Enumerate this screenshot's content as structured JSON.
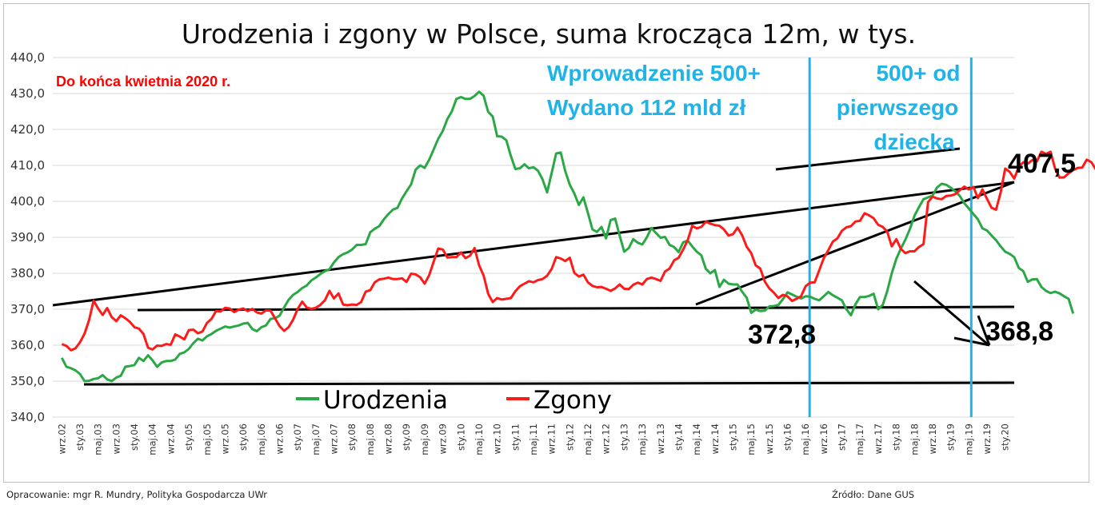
{
  "chart_data": {
    "type": "line",
    "title": "Urodzenia i zgony w Polsce, suma krocząca 12m, w tys.",
    "ylim": [
      340,
      440
    ],
    "yticks": [
      "340,0",
      "350,0",
      "360,0",
      "370,0",
      "380,0",
      "390,0",
      "400,0",
      "410,0",
      "420,0",
      "430,0",
      "440,0"
    ],
    "grid": true,
    "x_tick_labels": [
      "wrz.02",
      "sty.03",
      "maj.03",
      "wrz.03",
      "sty.04",
      "maj.04",
      "wrz.04",
      "sty.05",
      "maj.05",
      "wrz.05",
      "sty.06",
      "maj.06",
      "wrz.06",
      "sty.07",
      "maj.07",
      "wrz.07",
      "sty.08",
      "maj.08",
      "wrz.08",
      "sty.09",
      "maj.09",
      "wrz.09",
      "sty.10",
      "maj.10",
      "wrz.10",
      "sty.11",
      "maj.11",
      "wrz.11",
      "sty.12",
      "maj.12",
      "wrz.12",
      "sty.13",
      "maj.13",
      "wrz.13",
      "sty.14",
      "maj.14",
      "wrz.14",
      "sty.15",
      "maj.15",
      "wrz.15",
      "sty.16",
      "maj.16",
      "wrz.16",
      "sty.17",
      "maj.17",
      "wrz.17",
      "sty.18",
      "maj.18",
      "wrz.18",
      "sty.19",
      "maj.19",
      "wrz.19",
      "sty.20"
    ],
    "series": [
      {
        "name": "Urodzenia",
        "color": "#2aa845",
        "values": [
          356.5,
          354,
          353.6,
          353,
          352,
          350,
          350.1,
          350.6,
          350.8,
          351.7,
          350.5,
          350,
          351,
          351.5,
          354,
          354.2,
          354.5,
          356.5,
          355.6,
          357.2,
          355.8,
          354,
          355.2,
          355.6,
          355.6,
          356,
          357.6,
          358,
          359,
          360.6,
          361.8,
          361.3,
          362.5,
          363.1,
          364,
          364.6,
          365.2,
          364.9,
          365.2,
          365.5,
          366,
          366.2,
          364.5,
          363.9,
          365,
          365.5,
          367.3,
          367.5,
          368.2,
          370.5,
          372.6,
          374,
          374.8,
          375.9,
          376.6,
          378,
          378.8,
          379.8,
          380.6,
          381.1,
          383,
          384.5,
          385.3,
          385.8,
          386.6,
          387.9,
          387.9,
          388.1,
          391.4,
          392.4,
          393.1,
          395,
          396.5,
          397.7,
          398.2,
          400.8,
          402.8,
          404.7,
          408.8,
          410,
          409.3,
          411.6,
          414.5,
          417.4,
          419.6,
          422.9,
          425,
          428.5,
          429,
          428.5,
          428.5,
          429.3,
          430.5,
          429.4,
          424.9,
          423.6,
          418.1,
          418,
          417,
          412.6,
          409,
          409.2,
          410.3,
          409.2,
          409.5,
          408.5,
          406.1,
          402.5,
          407.9,
          413.3,
          413.6,
          408.4,
          404.6,
          402.2,
          399,
          401.1,
          396.8,
          392.2,
          391.5,
          392.9,
          389.7,
          394.8,
          395.2,
          390.5,
          386,
          387,
          389.5,
          388.5,
          388,
          390,
          392.6,
          391.2,
          389.9,
          390.1,
          387.9,
          387.3,
          385.9,
          388.6,
          389.1,
          387.5,
          386,
          385,
          381.2,
          380,
          380.9,
          376.2,
          378.2,
          377.1,
          376.9,
          376.9,
          374.9,
          373.2,
          369,
          369.9,
          369.5,
          369.6,
          370.8,
          370.9,
          371.2,
          372.8,
          374.7,
          374.1,
          373.5,
          373,
          373.6,
          373.5,
          372.9,
          372.5,
          373.6,
          374.8,
          373.9,
          373.2,
          372.5,
          370,
          368.3,
          371.4,
          373.4,
          373.4,
          373.7,
          374.3,
          370,
          371.2,
          375,
          380,
          384,
          386.9,
          389.3,
          392.3,
          396,
          398.4,
          400.6,
          401.1,
          401.6,
          403.9,
          404.9,
          404.6,
          403.8,
          402.8,
          401.5,
          399.5,
          398,
          396.5,
          395,
          392.5,
          391.9,
          390.5,
          389.2,
          387.5,
          386,
          385.4,
          384.5,
          381.5,
          380.6,
          377.6,
          378.3,
          378.4,
          376.2,
          375.1,
          374.5,
          374.9,
          374.4,
          373.6,
          372.9,
          368.8
        ]
      },
      {
        "name": "Zgony",
        "color": "#ff1a1a",
        "values": [
          360.3,
          359.8,
          358.6,
          359.1,
          360.8,
          363.2,
          367,
          372.4,
          370.2,
          368.4,
          370.3,
          367.8,
          366.7,
          368.3,
          367.5,
          366.5,
          365,
          364.6,
          363.1,
          359.3,
          358.8,
          359.9,
          359.8,
          360.3,
          360.1,
          363,
          362.4,
          361.6,
          364.2,
          364.3,
          363.3,
          363.8,
          366.2,
          367.3,
          369.5,
          369.4,
          370.4,
          370.2,
          369.2,
          369.9,
          370.2,
          369.5,
          370.1,
          369.1,
          368.8,
          369.7,
          369.6,
          367.5,
          365.3,
          364,
          365,
          367.1,
          370.1,
          372.1,
          370.5,
          370.1,
          370.4,
          371.2,
          372.5,
          375.1,
          373,
          374.4,
          371.3,
          371.1,
          371.3,
          371.2,
          372,
          374.9,
          375.3,
          377.5,
          378.3,
          378.5,
          378.8,
          378.4,
          378.4,
          378.6,
          377.6,
          379.9,
          379.7,
          378.9,
          377.1,
          379.5,
          383.3,
          386.9,
          386.6,
          384.4,
          384.5,
          384.5,
          385.8,
          384.2,
          384.9,
          387,
          382.2,
          379.4,
          374.3,
          372,
          373.1,
          372.7,
          372.9,
          373.1,
          375,
          376.4,
          377.1,
          377.8,
          377.5,
          378.1,
          378.4,
          379.3,
          381.2,
          384.5,
          384.1,
          383.4,
          384.3,
          380.1,
          379.1,
          379.6,
          377.5,
          376.5,
          376.1,
          376.2,
          375.7,
          375.1,
          375.8,
          376.9,
          375.7,
          375.6,
          376.8,
          377.4,
          376.9,
          378.4,
          378.8,
          378.4,
          377.9,
          380.5,
          381.3,
          383.6,
          384.3,
          386.6,
          389.2,
          393.2,
          392.5,
          392.9,
          394.3,
          393.8,
          393.4,
          393.2,
          392.2,
          390.5,
          390.9,
          392.7,
          390.6,
          387.4,
          385.6,
          382.2,
          381.3,
          377.7,
          375.8,
          374.6,
          373.1,
          374,
          373.6,
          372.3,
          372.9,
          373.6,
          376.4,
          377.4,
          377.5,
          380.8,
          384.2,
          386.4,
          388.8,
          389.7,
          391.8,
          392.8,
          393.1,
          394.4,
          394.6,
          396.7,
          396.1,
          395.3,
          393.5,
          392.9,
          391.6,
          387.5,
          389.5,
          386.8,
          385.6,
          386.1,
          386.1,
          387.3,
          388.1,
          399.8,
          401.3,
          400.8,
          400.6,
          401.5,
          401.6,
          402,
          403.1,
          404.1,
          403.3,
          404,
          400.9,
          403.3,
          400.7,
          398.2,
          397.7,
          402.4,
          409.1,
          408.2,
          406.3,
          409.6,
          410.9,
          410.5,
          411.5,
          411.1,
          413.8,
          413.2,
          413.8,
          409.2,
          406.6,
          406.7,
          407.8,
          408.7,
          409.3,
          409.4,
          411.6,
          410.9,
          408.9,
          410,
          408.6,
          406.7,
          407.5
        ]
      }
    ],
    "legend": {
      "position": "bottom-left"
    },
    "annotations": {
      "note_red": "Do końca kwietnia 2020 r.",
      "blue_1_line1": "Wprowadzenie 500+",
      "blue_1_line2": "Wydano 112 mld zł",
      "blue_2_line1": "500+ od",
      "blue_2_line2": "pierwszego",
      "blue_2_line3": "dziecka",
      "label_deaths_end": "407,5",
      "label_births_2016": "372,8",
      "label_births_end": "368,8",
      "vertical_markers": [
        "maj.16",
        "maj.19"
      ],
      "marker_color": "#1fb3e8"
    }
  },
  "footer": {
    "left": "Opracowanie: mgr R. Mundry, Polityka Gospodarcza UWr",
    "right": "Źródło: Dane GUS"
  }
}
